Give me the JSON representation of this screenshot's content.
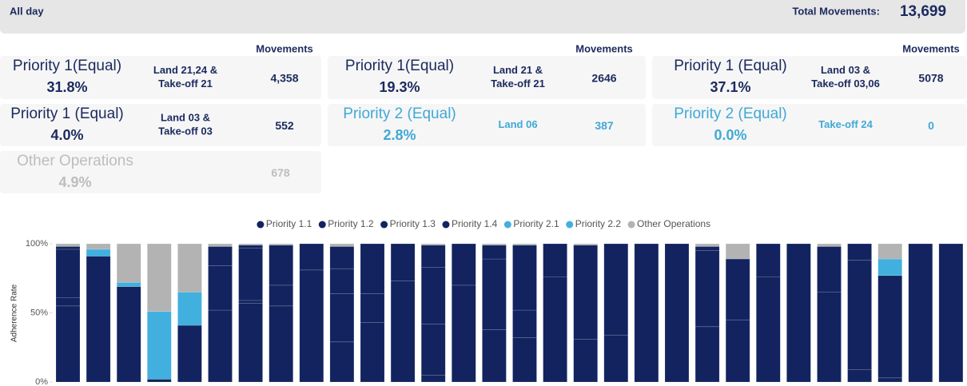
{
  "header": {
    "title": "All day",
    "total_label": "Total Movements:",
    "total_value": "13,699"
  },
  "column_headers": [
    "Movements",
    "Movements",
    "Movements"
  ],
  "cards": [
    {
      "name": "Priority 1(Equal)",
      "percent": "31.8%",
      "operation": [
        "Land 21,24 &",
        "Take-off 21"
      ],
      "movements": "4,358",
      "color": "#1b2a5e"
    },
    {
      "name": "Priority 1(Equal)",
      "percent": "19.3%",
      "operation": [
        "Land 21 &",
        "Take-off 21"
      ],
      "movements": "2646",
      "color": "#1b2a5e"
    },
    {
      "name": "Priority 1 (Equal)",
      "percent": "37.1%",
      "operation": [
        "Land 03 &",
        "Take-off 03,06"
      ],
      "movements": "5078",
      "color": "#1b2a5e"
    },
    {
      "name": "Priority 1 (Equal)",
      "percent": "4.0%",
      "operation": [
        "Land 03 &",
        "Take-off 03"
      ],
      "movements": "552",
      "color": "#1b2a5e"
    },
    {
      "name": "Priority 2 (Equal)",
      "percent": "2.8%",
      "operation": [
        "Land 06"
      ],
      "movements": "387",
      "color": "#41a9d6"
    },
    {
      "name": "Priority 2 (Equal)",
      "percent": "0.0%",
      "operation": [
        "Take-off 24"
      ],
      "movements": "0",
      "color": "#41a9d6"
    },
    {
      "name": "Other Operations",
      "percent": "4.9%",
      "movements": "678",
      "color": "#bdbdbd"
    }
  ],
  "chart_data": {
    "type": "stacked_bar",
    "y_label": "Adherence Rate",
    "categories": [
      null,
      null,
      null,
      null,
      null,
      null,
      null,
      null,
      null,
      null,
      null,
      null,
      null,
      null,
      null,
      null,
      null,
      null,
      null,
      null,
      null,
      null,
      null,
      null,
      null,
      null,
      null,
      null,
      null,
      null
    ],
    "ylim": [
      0,
      100
    ],
    "yticks": [
      {
        "value": 0,
        "label": "0%"
      },
      {
        "value": 50,
        "label": "50%"
      },
      {
        "value": 100,
        "label": "100%"
      }
    ],
    "grid": false,
    "legend": "top",
    "series": [
      {
        "name": "Priority 1.1",
        "color": "#12235f",
        "values": [
          55,
          91,
          69,
          2,
          41,
          52,
          57,
          55,
          81,
          29,
          43,
          73,
          5,
          70,
          38,
          32,
          76,
          31,
          34,
          100,
          100,
          40,
          45,
          76,
          100,
          65,
          9,
          3,
          100,
          100
        ]
      },
      {
        "name": "Priority 1.2",
        "color": "#12235f",
        "values": [
          6,
          0,
          0,
          0,
          0,
          32,
          2,
          15,
          19,
          35,
          21,
          27,
          37,
          30,
          51,
          20,
          24,
          68,
          66,
          0,
          0,
          55,
          44,
          24,
          0,
          33,
          79,
          74,
          0,
          0
        ]
      },
      {
        "name": "Priority 1.3",
        "color": "#12235f",
        "values": [
          35,
          0,
          0,
          0,
          0,
          14,
          38,
          29,
          0,
          18,
          36,
          0,
          41,
          0,
          10,
          47,
          0,
          0,
          0,
          0,
          0,
          3,
          0,
          0,
          0,
          0,
          12,
          0,
          0,
          0
        ]
      },
      {
        "name": "Priority 1.4",
        "color": "#12235f",
        "values": [
          2,
          0,
          0,
          0,
          0,
          0,
          2,
          0,
          0,
          16,
          0,
          0,
          16,
          0,
          0,
          0,
          0,
          0,
          0,
          0,
          0,
          0,
          0,
          0,
          0,
          0,
          0,
          0,
          0,
          0
        ]
      },
      {
        "name": "Priority 2.1",
        "color": "#41b0de",
        "values": [
          0,
          5,
          3,
          49,
          24,
          0,
          0,
          0,
          0,
          0,
          0,
          0,
          0,
          0,
          0,
          0,
          0,
          0,
          0,
          0,
          0,
          0,
          0,
          0,
          0,
          0,
          0,
          12,
          0,
          0
        ]
      },
      {
        "name": "Priority 2.2",
        "color": "#41b0de",
        "values": [
          0,
          0,
          0,
          0,
          0,
          0,
          0,
          0,
          0,
          0,
          0,
          0,
          0,
          0,
          0,
          0,
          0,
          0,
          0,
          0,
          0,
          0,
          0,
          0,
          0,
          0,
          0,
          0,
          0,
          0
        ]
      },
      {
        "name": "Other Operations",
        "color": "#b3b3b3",
        "values": [
          2,
          4,
          28,
          49,
          35,
          2,
          1,
          1,
          0,
          2,
          0,
          0,
          1,
          0,
          1,
          1,
          0,
          1,
          0,
          0,
          0,
          2,
          11,
          0,
          0,
          2,
          0,
          11,
          0,
          0
        ]
      }
    ]
  }
}
